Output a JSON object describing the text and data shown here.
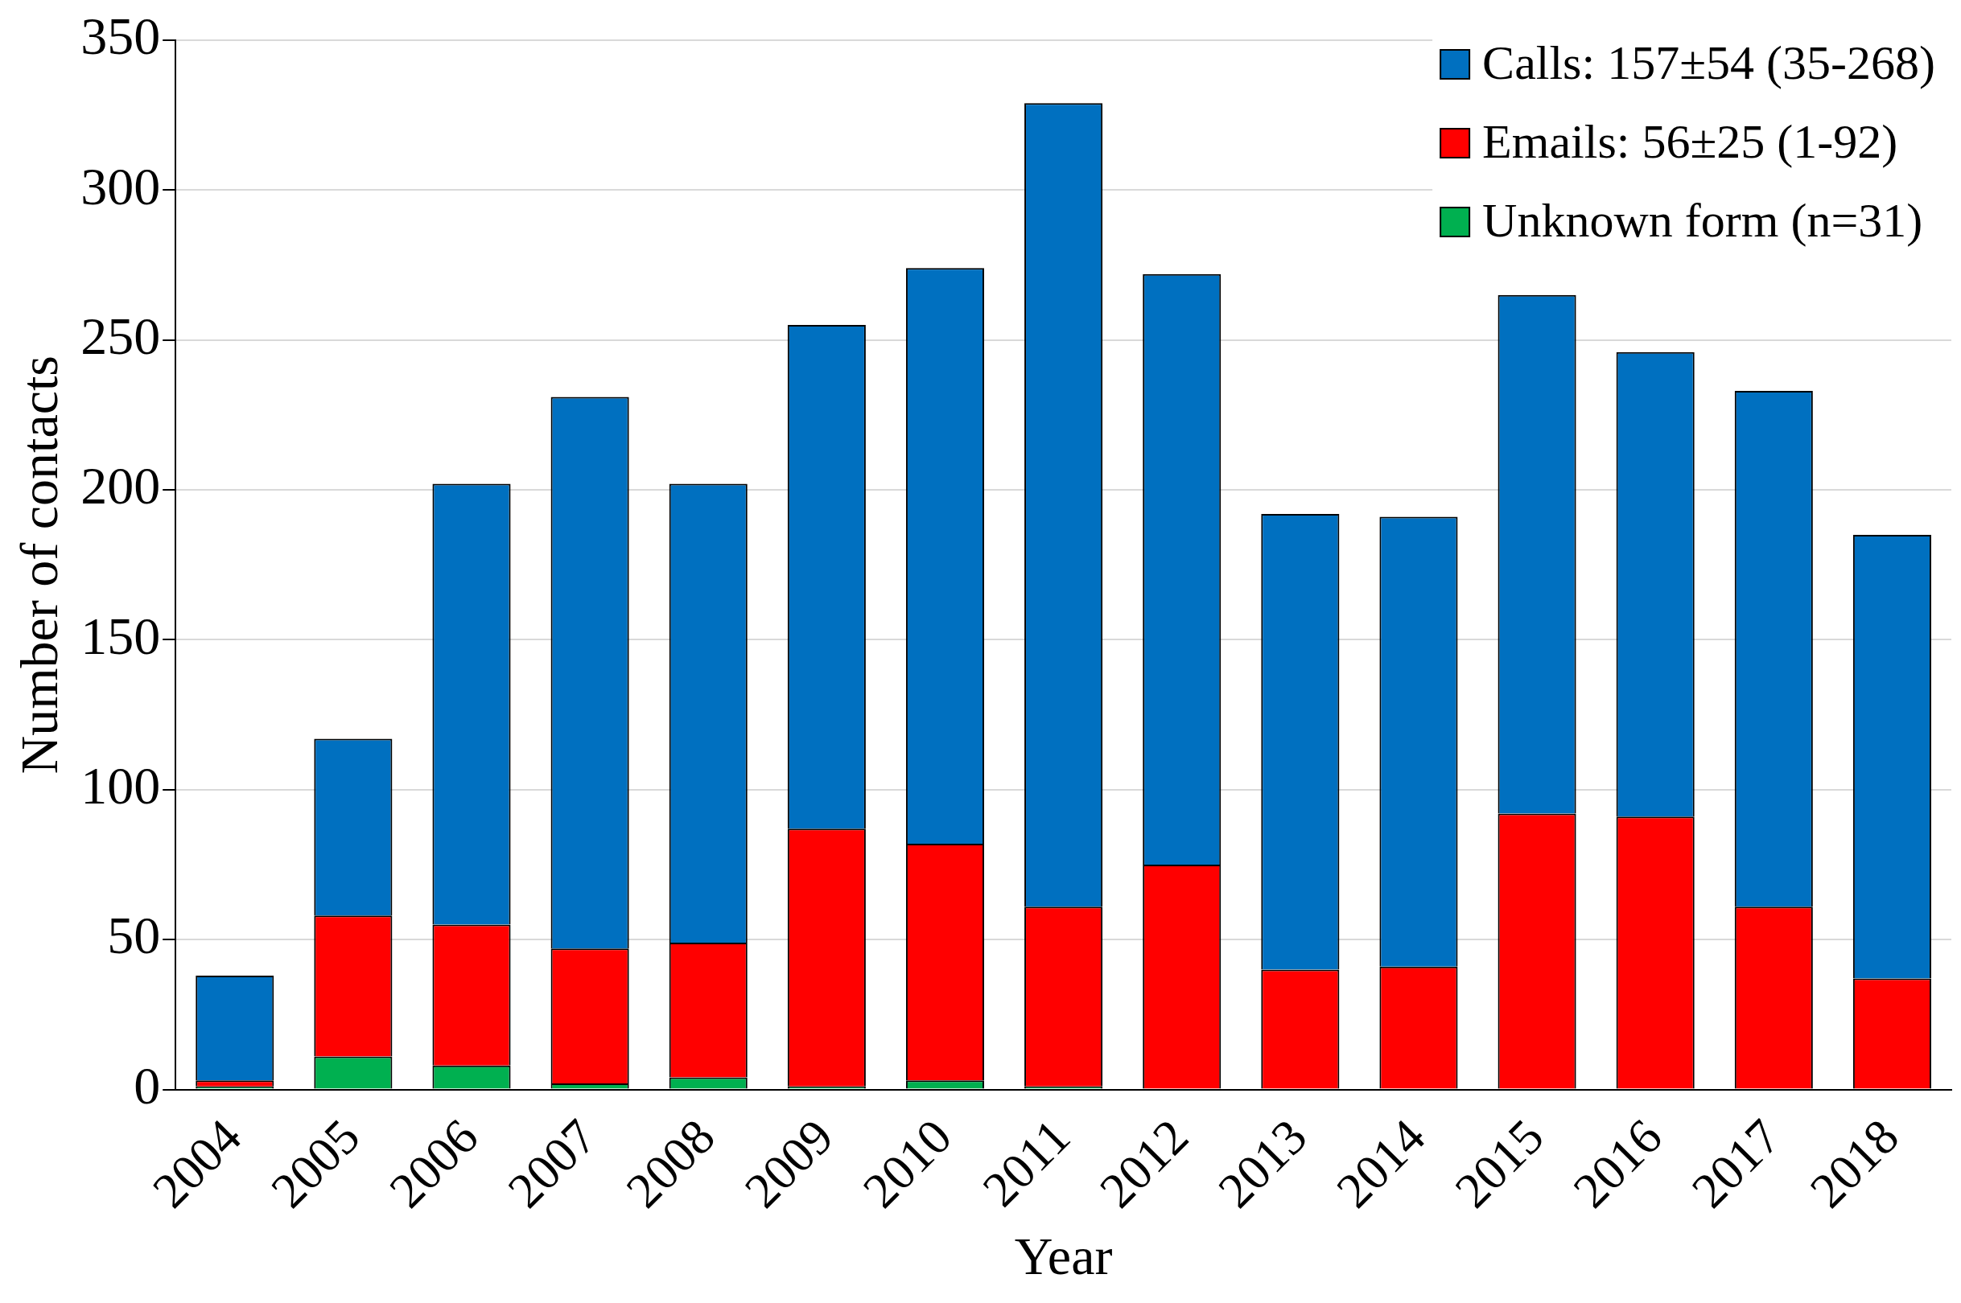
{
  "chart_data": {
    "type": "bar",
    "stacked": true,
    "xlabel": "Year",
    "ylabel": "Number of contacts",
    "categories": [
      "2004",
      "2005",
      "2006",
      "2007",
      "2008",
      "2009",
      "2010",
      "2011",
      "2012",
      "2013",
      "2014",
      "2015",
      "2016",
      "2017",
      "2018"
    ],
    "series": [
      {
        "name": "Unknown form (n=31)",
        "color": "#00b050",
        "values": [
          1,
          11,
          8,
          2,
          4,
          1,
          3,
          1,
          0,
          0,
          0,
          0,
          0,
          0,
          0
        ]
      },
      {
        "name": "Emails: 56±25 (1-92)",
        "color": "#ff0000",
        "values": [
          2,
          47,
          47,
          45,
          45,
          86,
          79,
          60,
          75,
          40,
          41,
          92,
          91,
          61,
          37
        ]
      },
      {
        "name": "Calls: 157±54 (35-268)",
        "color": "#0070c0",
        "values": [
          35,
          59,
          147,
          184,
          153,
          168,
          192,
          268,
          197,
          152,
          150,
          173,
          155,
          172,
          148
        ]
      }
    ],
    "ylim": [
      0,
      350
    ],
    "yticks": [
      0,
      50,
      100,
      150,
      200,
      250,
      300,
      350
    ],
    "grid": "y",
    "legend": "top right"
  }
}
